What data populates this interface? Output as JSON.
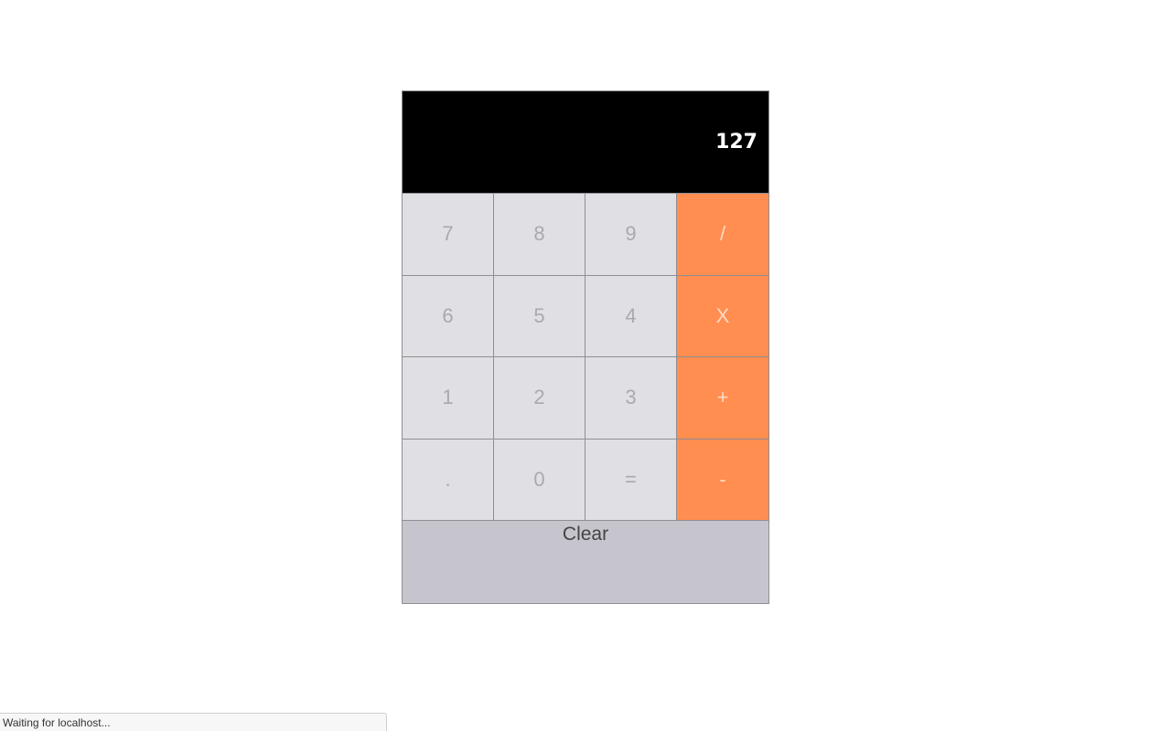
{
  "display": {
    "value": "127"
  },
  "keys": {
    "row1": [
      "7",
      "8",
      "9",
      "/"
    ],
    "row2": [
      "6",
      "5",
      "4",
      "X"
    ],
    "row3": [
      "1",
      "2",
      "3",
      "+"
    ],
    "row4": [
      ".",
      "0",
      "=",
      "-"
    ]
  },
  "clear_label": "Clear",
  "status_text": "Waiting for localhost...",
  "colors": {
    "display_bg": "#000000",
    "number_key_bg": "#e0e0e4",
    "operator_key_bg": "#ff8e50",
    "clear_bg": "#c6c5cd"
  }
}
